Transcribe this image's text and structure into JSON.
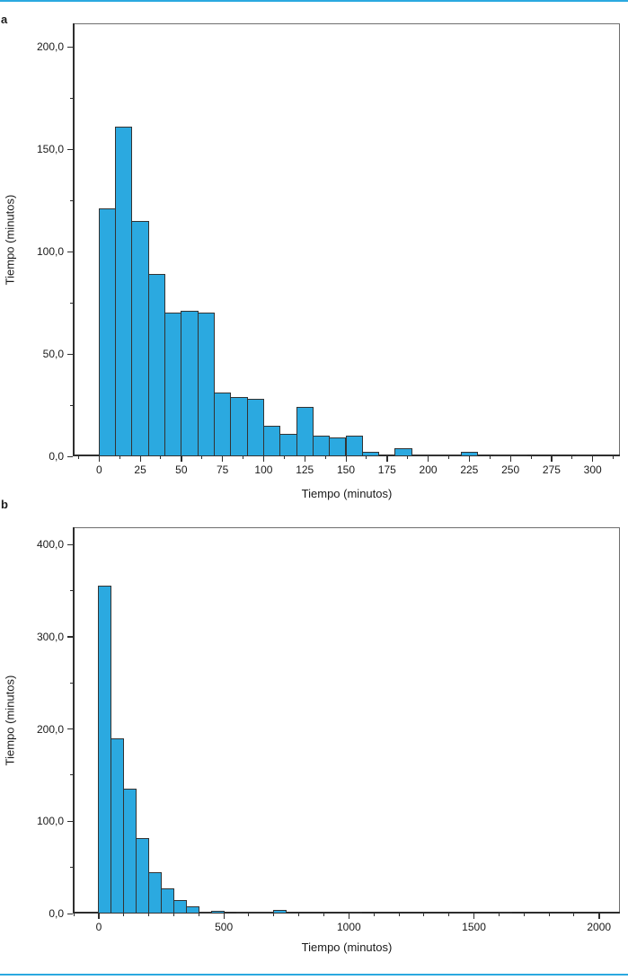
{
  "figure": {
    "colors": {
      "bar_fill": "#2BA9E0",
      "bar_stroke": "#333333",
      "axis": "#2E2E2E",
      "box": "#6E6E6E",
      "rule": "#2BA9E0",
      "text": "#1A1A1A"
    }
  },
  "chart_data": [
    {
      "type": "bar",
      "panel_label": "a",
      "xlabel": "Tiempo (minutos)",
      "ylabel": "Tiempo (minutos)",
      "histogram": {
        "bin_start": 0,
        "bin_width": 10,
        "counts": [
          121,
          161,
          115,
          89,
          70,
          71,
          70,
          31,
          29,
          28,
          15,
          11,
          24,
          10,
          9,
          10,
          2,
          0,
          4,
          1,
          1,
          1,
          2,
          0,
          1,
          1,
          0,
          0,
          0,
          1
        ]
      },
      "x_ticks": {
        "values": [
          0,
          25,
          50,
          75,
          100,
          125,
          150,
          175,
          200,
          225,
          250,
          275,
          300
        ],
        "labels": [
          "0",
          "25",
          "50",
          "75",
          "100",
          "125",
          "150",
          "175",
          "200",
          "225",
          "250",
          "275",
          "300"
        ],
        "minor_step": 12.5
      },
      "y_ticks": {
        "values": [
          0,
          50,
          100,
          150,
          200
        ],
        "labels": [
          "0,0",
          "50,0",
          "100,0",
          "150,0",
          "200,0"
        ],
        "minor_step": 25
      },
      "xlim": [
        -16,
        316
      ],
      "ylim": [
        0,
        211.5
      ],
      "grid": false,
      "legend": null
    },
    {
      "type": "bar",
      "panel_label": "b",
      "xlabel": "Tiempo (minutos)",
      "ylabel": "Tiempo (minutos)",
      "histogram": {
        "bin_start": 0,
        "bin_width": 50,
        "counts": [
          355,
          190,
          135,
          82,
          45,
          27,
          15,
          8,
          2,
          3,
          0,
          1,
          1,
          2,
          4,
          0,
          0,
          0,
          0,
          0,
          2,
          0,
          0,
          0,
          0,
          0,
          0,
          0,
          0,
          0,
          0,
          0,
          1
        ]
      },
      "x_ticks": {
        "values": [
          0,
          500,
          1000,
          1500,
          2000
        ],
        "labels": [
          "0",
          "500",
          "1000",
          "1500",
          "2000"
        ],
        "minor_step": 100
      },
      "y_ticks": {
        "values": [
          0,
          100,
          200,
          300,
          400
        ],
        "labels": [
          "0,0",
          "100,0",
          "200,0",
          "300,0",
          "400,0"
        ],
        "minor_step": 50
      },
      "xlim": [
        -104,
        2080
      ],
      "ylim": [
        0,
        418.5
      ],
      "grid": false,
      "legend": null
    }
  ]
}
